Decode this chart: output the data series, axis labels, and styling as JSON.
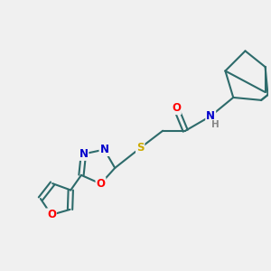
{
  "background_color": "#f0f0f0",
  "bond_color": "#2d6b6b",
  "atom_colors": {
    "O": "#ff0000",
    "N": "#0000cc",
    "S": "#ccaa00",
    "H": "#888888",
    "C": "#2d6b6b"
  },
  "bond_width": 1.5,
  "font_size": 8.5,
  "figsize": [
    3.0,
    3.0
  ],
  "dpi": 100
}
